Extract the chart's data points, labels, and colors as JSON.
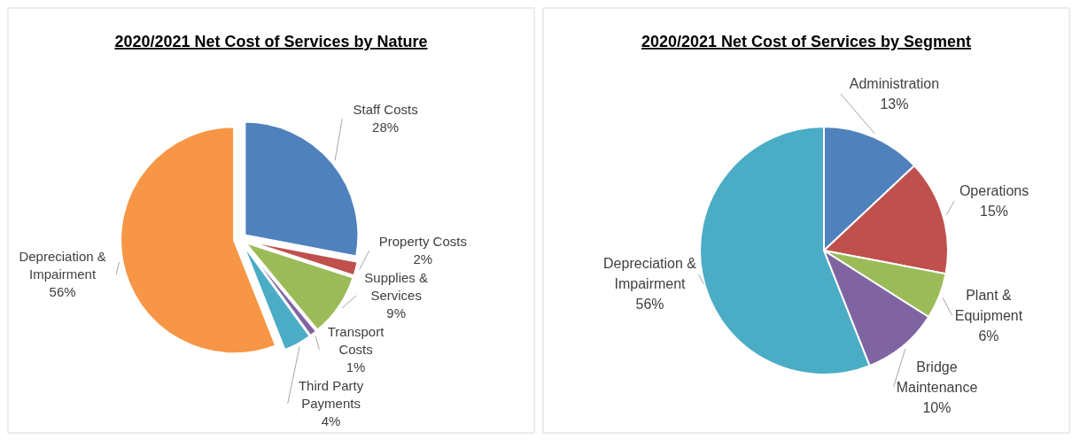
{
  "chart_data": [
    {
      "type": "pie",
      "title": "2020/2021 Net Cost of Services by Nature",
      "categories": [
        "Staff Costs",
        "Property Costs",
        "Supplies & Services",
        "Transport Costs",
        "Third Party Payments",
        "Depreciation & Impairment"
      ],
      "values": [
        28,
        2,
        9,
        1,
        4,
        56
      ],
      "value_labels": [
        "28%",
        "2%",
        "9%",
        "1%",
        "4%",
        "56%"
      ],
      "colors": [
        "#4f81bd",
        "#c0504d",
        "#9bbb59",
        "#8064a2",
        "#4bacc6",
        "#f79646"
      ],
      "data_labels": true
    },
    {
      "type": "pie",
      "title": "2020/2021 Net Cost of Services by Segment",
      "categories": [
        "Administration",
        "Operations",
        "Plant & Equipment",
        "Bridge Maintenance",
        "Depreciation & Impairment"
      ],
      "values": [
        13,
        15,
        6,
        10,
        56
      ],
      "value_labels": [
        "13%",
        "15%",
        "6%",
        "10%",
        "56%"
      ],
      "colors": [
        "#4f81bd",
        "#c0504d",
        "#9bbb59",
        "#8064a2",
        "#4bacc6"
      ],
      "data_labels": true
    }
  ]
}
